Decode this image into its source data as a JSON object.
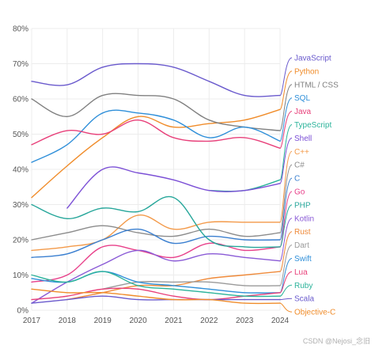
{
  "watermark": "CSDN @Nejosi_念旧",
  "chart_data": {
    "type": "line",
    "x": [
      2017,
      2018,
      2019,
      2020,
      2021,
      2022,
      2023,
      2024
    ],
    "xlim": [
      2017,
      2024
    ],
    "ylim": [
      0,
      80
    ],
    "y_ticks": [
      "0%",
      "10%",
      "20%",
      "30%",
      "40%",
      "50%",
      "60%",
      "70%",
      "80%"
    ],
    "x_ticks": [
      "2017",
      "2018",
      "2019",
      "2020",
      "2021",
      "2022",
      "2023",
      "2024"
    ],
    "grid": true,
    "legend": "right",
    "series": [
      {
        "name": "JavaScript",
        "color": "#6a5acd",
        "values": [
          65,
          64,
          69,
          70,
          69,
          65,
          61,
          61
        ]
      },
      {
        "name": "Python",
        "color": "#f08c2a",
        "values": [
          32,
          41,
          49,
          55,
          52,
          53,
          54,
          57
        ]
      },
      {
        "name": "HTML / CSS",
        "color": "#808080",
        "values": [
          60,
          55,
          61,
          61,
          60,
          54,
          52,
          51
        ]
      },
      {
        "name": "SQL",
        "color": "#2f8fd9",
        "values": [
          42,
          47,
          56,
          56,
          54,
          49,
          52,
          48
        ]
      },
      {
        "name": "Java",
        "color": "#e8407a",
        "values": [
          47,
          51,
          50,
          54,
          49,
          48,
          49,
          46
        ]
      },
      {
        "name": "TypeScript",
        "color": "#2bb39a",
        "values": [
          null,
          null,
          null,
          null,
          null,
          34,
          34,
          37
        ]
      },
      {
        "name": "Shell",
        "color": "#7b4fd6",
        "values": [
          null,
          29,
          40,
          39,
          37,
          34,
          34,
          36
        ]
      },
      {
        "name": "C++",
        "color": "#f39a4a",
        "values": [
          17,
          18,
          20,
          27,
          23,
          25,
          25,
          25
        ]
      },
      {
        "name": "C#",
        "color": "#8c8c8c",
        "values": [
          20,
          22,
          24,
          22,
          21,
          23,
          21,
          22
        ]
      },
      {
        "name": "C",
        "color": "#3a7fd0",
        "values": [
          15,
          16,
          20,
          23,
          19,
          21,
          20,
          20
        ]
      },
      {
        "name": "Go",
        "color": "#e8408a",
        "values": [
          8,
          10,
          18,
          17,
          15,
          19,
          17,
          18
        ]
      },
      {
        "name": "PHP",
        "color": "#26a69a",
        "values": [
          30,
          26,
          29,
          28,
          32,
          20,
          18,
          18
        ]
      },
      {
        "name": "Kotlin",
        "color": "#8a5ad6",
        "values": [
          2,
          8,
          13,
          17,
          14,
          16,
          15,
          14
        ]
      },
      {
        "name": "Rust",
        "color": "#ef8a3a",
        "values": [
          null,
          3,
          5,
          7,
          7,
          9,
          10,
          11
        ]
      },
      {
        "name": "Dart",
        "color": "#9a9a9a",
        "values": [
          null,
          null,
          6,
          8,
          8,
          8,
          7,
          7
        ]
      },
      {
        "name": "Swift",
        "color": "#2f8fd9",
        "values": [
          9,
          8,
          11,
          8,
          7,
          6,
          5,
          5
        ]
      },
      {
        "name": "Lua",
        "color": "#e8407a",
        "values": [
          3,
          4,
          6,
          6,
          4,
          3,
          4,
          5
        ]
      },
      {
        "name": "Ruby",
        "color": "#2bb39a",
        "values": [
          10,
          8,
          11,
          7,
          6,
          5,
          4,
          4
        ]
      },
      {
        "name": "Scala",
        "color": "#6a5acd",
        "values": [
          2,
          3,
          4,
          3,
          3,
          3,
          3,
          3
        ]
      },
      {
        "name": "Objective-C",
        "color": "#f08c2a",
        "values": [
          6,
          5,
          5,
          4,
          3,
          3,
          2,
          2
        ]
      }
    ]
  }
}
